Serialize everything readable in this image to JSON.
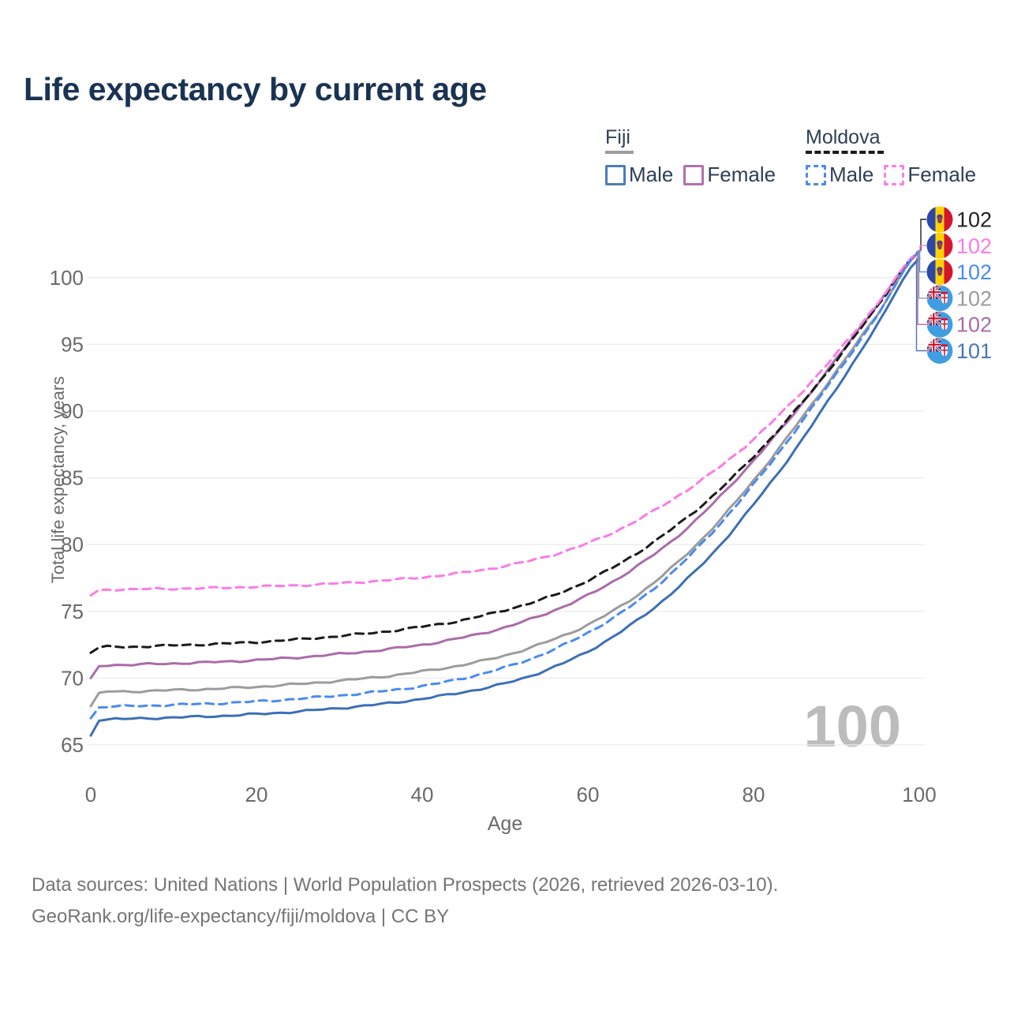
{
  "title": "Life expectancy by current age",
  "legend": {
    "groups": [
      {
        "label": "Fiji",
        "line_style": "solid",
        "underline_color": "#9e9e9e",
        "items": [
          {
            "label": "Male",
            "color": "#3d6fb6",
            "dashed": false
          },
          {
            "label": "Female",
            "color": "#ab6ca9",
            "dashed": false
          }
        ]
      },
      {
        "label": "Moldova",
        "line_style": "dashed",
        "underline_color": "#1b1b1b",
        "items": [
          {
            "label": "Male",
            "color": "#4a8bf0",
            "dashed": true
          },
          {
            "label": "Female",
            "color": "#fb7be7",
            "dashed": true
          }
        ]
      }
    ]
  },
  "hover": {
    "age_indicator": "100"
  },
  "end_labels": [
    {
      "value": "102",
      "flag": "moldova",
      "series": "Moldova",
      "color": "#222222"
    },
    {
      "value": "102",
      "flag": "moldova",
      "series": "Moldova Female",
      "color": "#fb7be7"
    },
    {
      "value": "102",
      "flag": "moldova",
      "series": "Moldova Male",
      "color": "#4a8bf0"
    },
    {
      "value": "102",
      "flag": "fiji",
      "series": "Fiji",
      "color": "#9c9c9c"
    },
    {
      "value": "102",
      "flag": "fiji",
      "series": "Fiji Female",
      "color": "#ab6ca9"
    },
    {
      "value": "101",
      "flag": "fiji",
      "series": "Fiji Male",
      "color": "#4a76b4"
    }
  ],
  "footer": {
    "line1": "Data sources: United Nations | World Population Prospects (2026, retrieved 2026-03-10).",
    "line2": "GeoRank.org/life-expectancy/fiji/moldova | CC BY"
  },
  "chart_data": {
    "type": "line",
    "title": "Life expectancy by current age",
    "xlabel": "Age",
    "ylabel": "Total life expectancy, years",
    "xlim": [
      0,
      100
    ],
    "ylim": [
      65,
      102.5
    ],
    "x_ticks": [
      0,
      20,
      40,
      60,
      80,
      100
    ],
    "y_ticks": [
      65,
      70,
      75,
      80,
      85,
      90,
      95,
      100
    ],
    "grid": "horizontal-only",
    "legend_position": "top-right",
    "ages": [
      0,
      1,
      5,
      10,
      15,
      20,
      25,
      30,
      35,
      40,
      45,
      50,
      55,
      60,
      65,
      70,
      75,
      80,
      85,
      90,
      95,
      100
    ],
    "series": [
      {
        "name": "Fiji",
        "country": "Fiji",
        "sex": "Both",
        "color": "#9c9c9c",
        "dashed": false,
        "values": [
          67.9,
          68.9,
          69.0,
          69.1,
          69.2,
          69.35,
          69.55,
          69.8,
          70.1,
          70.5,
          71.0,
          71.7,
          72.7,
          74.0,
          75.8,
          78.2,
          81.2,
          84.8,
          88.8,
          93.0,
          97.3,
          101.94
        ]
      },
      {
        "name": "Fiji Female",
        "country": "Fiji",
        "sex": "Female",
        "color": "#ab6ca9",
        "dashed": false,
        "values": [
          70.0,
          70.9,
          71.0,
          71.1,
          71.2,
          71.35,
          71.55,
          71.8,
          72.1,
          72.5,
          73.05,
          73.8,
          74.85,
          76.2,
          78.0,
          80.2,
          83.0,
          86.3,
          89.9,
          93.9,
          98.0,
          101.9
        ]
      },
      {
        "name": "Fiji Male",
        "country": "Fiji",
        "sex": "Male",
        "color": "#3d6fb6",
        "dashed": false,
        "values": [
          65.7,
          66.8,
          66.95,
          67.05,
          67.15,
          67.3,
          67.5,
          67.75,
          68.05,
          68.45,
          68.95,
          69.6,
          70.6,
          72.0,
          73.9,
          76.3,
          79.3,
          83.0,
          87.1,
          91.7,
          96.5,
          101.45
        ]
      },
      {
        "name": "Moldova",
        "country": "Moldova",
        "sex": "Both",
        "color": "#1b1b1b",
        "dashed": true,
        "values": [
          71.9,
          72.3,
          72.35,
          72.45,
          72.55,
          72.7,
          72.9,
          73.15,
          73.45,
          73.85,
          74.35,
          75.1,
          76.0,
          77.3,
          79.0,
          81.1,
          83.6,
          86.6,
          90.0,
          93.8,
          97.9,
          102.0
        ]
      },
      {
        "name": "Moldova Female",
        "country": "Moldova",
        "sex": "Female",
        "color": "#fb7be7",
        "dashed": true,
        "values": [
          76.2,
          76.6,
          76.65,
          76.7,
          76.75,
          76.85,
          76.95,
          77.1,
          77.3,
          77.55,
          77.9,
          78.4,
          79.1,
          80.1,
          81.5,
          83.3,
          85.4,
          87.9,
          90.9,
          94.3,
          98.1,
          101.99
        ]
      },
      {
        "name": "Moldova Male",
        "country": "Moldova",
        "sex": "Male",
        "color": "#4a8bf0",
        "dashed": true,
        "values": [
          67.0,
          67.8,
          67.9,
          68.0,
          68.1,
          68.25,
          68.45,
          68.7,
          69.0,
          69.4,
          70.0,
          70.8,
          71.9,
          73.4,
          75.3,
          77.8,
          80.9,
          84.5,
          88.5,
          92.8,
          97.2,
          101.97
        ]
      }
    ],
    "end_values_at_age_100": {
      "Moldova": 102,
      "Moldova Female": 102,
      "Moldova Male": 102,
      "Fiji": 102,
      "Fiji Female": 102,
      "Fiji Male": 101
    }
  }
}
